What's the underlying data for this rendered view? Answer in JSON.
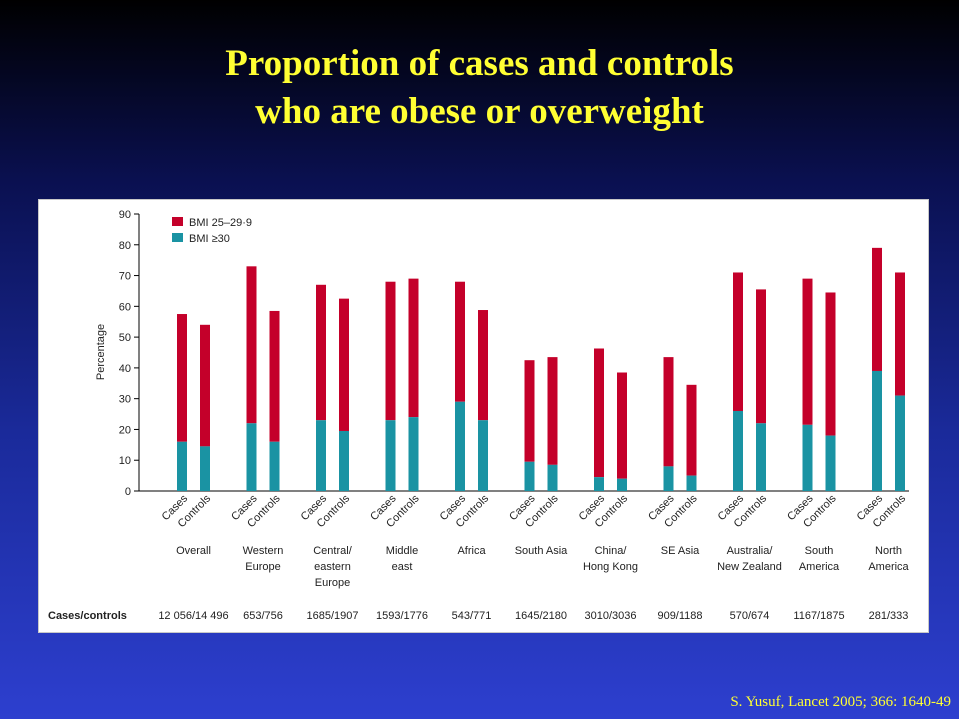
{
  "slide": {
    "title_line1": "Proportion of cases and controls",
    "title_line2": "who are obese or overweight",
    "citation": "S. Yusuf, Lancet 2005; 366: 1640-49"
  },
  "colors": {
    "overweight": "#c4002a",
    "obese": "#1a93a3"
  },
  "chart_data": {
    "type": "bar",
    "stacked": true,
    "ylabel": "Percentage",
    "ylim": [
      0,
      90
    ],
    "yticks": [
      0,
      10,
      20,
      30,
      40,
      50,
      60,
      70,
      80,
      90
    ],
    "legend_position": "top-left",
    "bar_labels": [
      "Cases",
      "Controls"
    ],
    "row_label": "Cases/controls",
    "groups": [
      {
        "name": [
          "Overall"
        ],
        "counts": "12 056/14 496",
        "obese": [
          16,
          14.5
        ],
        "total": [
          57.5,
          54
        ]
      },
      {
        "name": [
          "Western",
          "Europe"
        ],
        "counts": "653/756",
        "obese": [
          22,
          16
        ],
        "total": [
          73,
          58.5
        ]
      },
      {
        "name": [
          "Central/",
          "eastern",
          "Europe"
        ],
        "counts": "1685/1907",
        "obese": [
          23,
          19.5
        ],
        "total": [
          67,
          62.5
        ]
      },
      {
        "name": [
          "Middle",
          "east"
        ],
        "counts": "1593/1776",
        "obese": [
          23,
          24
        ],
        "total": [
          68,
          69
        ]
      },
      {
        "name": [
          "Africa"
        ],
        "counts": "543/771",
        "obese": [
          29,
          23
        ],
        "total": [
          68,
          58.8
        ]
      },
      {
        "name": [
          "South Asia"
        ],
        "counts": "1645/2180",
        "obese": [
          9.5,
          8.5
        ],
        "total": [
          42.5,
          43.5
        ]
      },
      {
        "name": [
          "China/",
          "Hong Kong"
        ],
        "counts": "3010/3036",
        "obese": [
          4.5,
          4
        ],
        "total": [
          46.3,
          38.5
        ]
      },
      {
        "name": [
          "SE Asia"
        ],
        "counts": "909/1188",
        "obese": [
          8,
          5
        ],
        "total": [
          43.5,
          34.5
        ]
      },
      {
        "name": [
          "Australia/",
          "New Zealand"
        ],
        "counts": "570/674",
        "obese": [
          26,
          22
        ],
        "total": [
          71,
          65.5
        ]
      },
      {
        "name": [
          "South",
          "America"
        ],
        "counts": "1167/1875",
        "obese": [
          21.5,
          18
        ],
        "total": [
          69,
          64.5
        ]
      },
      {
        "name": [
          "North",
          "America"
        ],
        "counts": "281/333",
        "obese": [
          39,
          31
        ],
        "total": [
          79,
          71
        ]
      }
    ],
    "series": [
      {
        "name": "BMI 25–29·9"
      },
      {
        "name": "BMI ≥30"
      }
    ]
  }
}
